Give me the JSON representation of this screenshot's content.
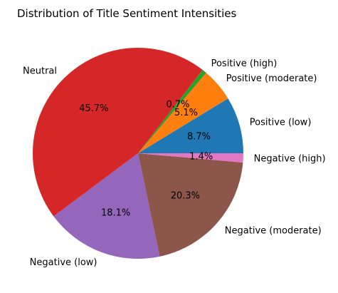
{
  "chart_data": {
    "type": "pie",
    "title": "Distribution of Title Sentiment Intensities",
    "slices": [
      {
        "label": "Positive (low)",
        "value": 8.7,
        "pct_label": "8.7%",
        "color": "#1f77b4"
      },
      {
        "label": "Positive (moderate)",
        "value": 5.1,
        "pct_label": "5.1%",
        "color": "#ff7f0e"
      },
      {
        "label": "Positive (high)",
        "value": 0.7,
        "pct_label": "0.7%",
        "color": "#2ca02c"
      },
      {
        "label": "Neutral",
        "value": 45.7,
        "pct_label": "45.7%",
        "color": "#d62728"
      },
      {
        "label": "Negative (low)",
        "value": 18.1,
        "pct_label": "18.1%",
        "color": "#9467bd"
      },
      {
        "label": "Negative (moderate)",
        "value": 20.3,
        "pct_label": "20.3%",
        "color": "#8c564b"
      },
      {
        "label": "Negative (high)",
        "value": 1.4,
        "pct_label": "1.4%",
        "color": "#e377c2"
      }
    ],
    "start_angle_deg": 0,
    "direction": "counterclockwise",
    "legend": "none"
  }
}
